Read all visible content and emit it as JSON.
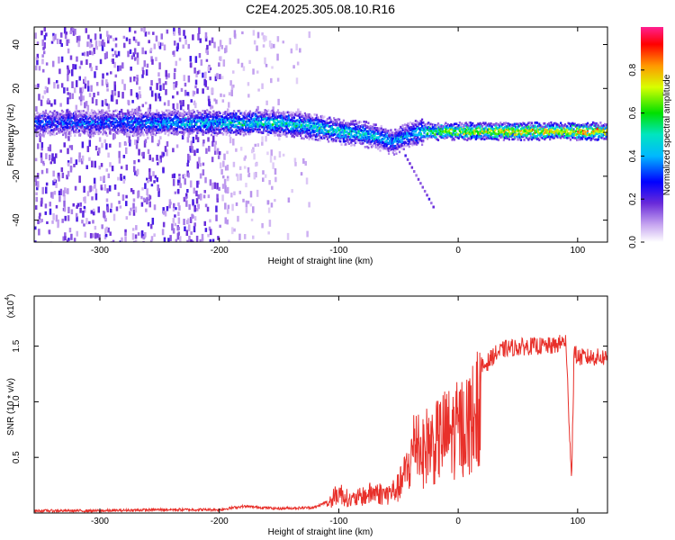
{
  "title": "C2E4.2025.305.08.10.R16",
  "colors": {
    "snr_line": "#e8302a",
    "axis": "#000000"
  },
  "chart_data": [
    {
      "type": "heatmap",
      "title": "C2E4.2025.305.08.10.R16",
      "xlabel": "Height of straight line (km)",
      "ylabel": "Frequency (Hz)",
      "xlim": [
        -355,
        125
      ],
      "ylim": [
        -50,
        48
      ],
      "xticks": [
        -300,
        -200,
        -100,
        0,
        100
      ],
      "xtick_labels": [
        "-300",
        "-200",
        "-100",
        "0",
        "100"
      ],
      "yticks": [
        -40,
        -20,
        0,
        20,
        40
      ],
      "ytick_labels": [
        "-40",
        "-20",
        "0",
        "20",
        "40"
      ],
      "colorbar": {
        "label": "Normalized spectral amplitude",
        "range": [
          0,
          1
        ],
        "ticks": [
          0.0,
          0.2,
          0.4,
          0.6,
          0.8
        ],
        "tick_labels": [
          "0.0",
          "0.2",
          "0.4",
          "0.6",
          "0.8"
        ]
      },
      "ridge": {
        "description_points_km_hz": [
          [
            -355,
            5
          ],
          [
            -300,
            5
          ],
          [
            -250,
            5
          ],
          [
            -200,
            5
          ],
          [
            -150,
            5
          ],
          [
            -120,
            3
          ],
          [
            -100,
            1
          ],
          [
            -80,
            0
          ],
          [
            -65,
            -2
          ],
          [
            -55,
            -4
          ],
          [
            -45,
            -1
          ],
          [
            -30,
            1
          ],
          [
            0,
            1
          ],
          [
            50,
            1
          ],
          [
            125,
            1
          ]
        ],
        "amplitude_points": [
          [
            -355,
            0.3
          ],
          [
            -300,
            0.35
          ],
          [
            -250,
            0.4
          ],
          [
            -200,
            0.45
          ],
          [
            -150,
            0.5
          ],
          [
            -100,
            0.5
          ],
          [
            -60,
            0.45
          ],
          [
            -40,
            0.4
          ],
          [
            -20,
            0.65
          ],
          [
            0,
            0.75
          ],
          [
            50,
            0.8
          ],
          [
            100,
            0.85
          ],
          [
            125,
            0.85
          ]
        ]
      }
    },
    {
      "type": "line",
      "title": "",
      "xlabel": "Height of straight line (km)",
      "ylabel": "SNR (10 * v/v)",
      "y_scale_label": "(x10",
      "y_scale_exp": "4",
      "y_scale_close": ")",
      "xlim": [
        -355,
        125
      ],
      "ylim": [
        0,
        1.95
      ],
      "xticks": [
        -300,
        -200,
        -100,
        0,
        100
      ],
      "xtick_labels": [
        "-300",
        "-200",
        "-100",
        "0",
        "100"
      ],
      "yticks": [
        0.5,
        1.0,
        1.5
      ],
      "ytick_labels": [
        "0.5",
        "1.0",
        "1.5"
      ],
      "series": [
        {
          "name": "SNR",
          "x": [
            -355,
            -300,
            -250,
            -200,
            -180,
            -150,
            -120,
            -110,
            -100,
            -90,
            -80,
            -70,
            -60,
            -50,
            -40,
            -35,
            -30,
            -25,
            -20,
            -15,
            -10,
            -5,
            0,
            10,
            20,
            30,
            40,
            60,
            80,
            90,
            95,
            97,
            100,
            110,
            125
          ],
          "y": [
            0.02,
            0.02,
            0.03,
            0.03,
            0.06,
            0.04,
            0.05,
            0.1,
            0.25,
            0.15,
            0.2,
            0.25,
            0.22,
            0.3,
            0.6,
            0.95,
            0.7,
            0.85,
            0.8,
            0.9,
            0.95,
            0.95,
            1.0,
            1.1,
            1.3,
            1.42,
            1.48,
            1.5,
            1.5,
            1.55,
            0.3,
            1.45,
            1.4,
            1.4,
            1.4
          ]
        }
      ]
    }
  ]
}
